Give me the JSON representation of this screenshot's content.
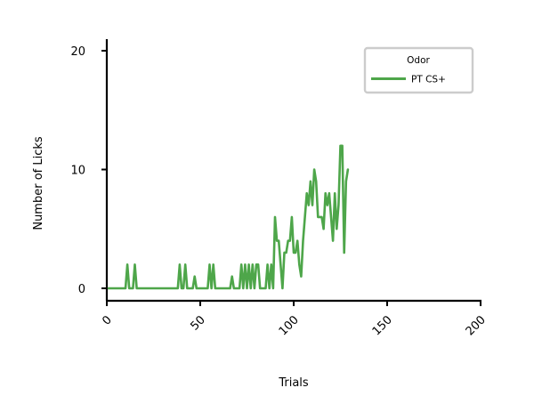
{
  "chart_data": {
    "type": "line",
    "xlabel": "Trials",
    "ylabel": "Number of Licks",
    "xlim": [
      0,
      200
    ],
    "ylim": [
      -1,
      21
    ],
    "xticks": [
      "0",
      "50",
      "100",
      "150",
      "200"
    ],
    "yticks": [
      "0",
      "10",
      "20"
    ],
    "xtick_values": [
      0,
      50,
      100,
      150,
      200
    ],
    "ytick_values": [
      0,
      10,
      20
    ],
    "grid": false,
    "legend": {
      "title": "Odor",
      "placement": "top-right"
    },
    "series": [
      {
        "name": "PT CS+",
        "color": "#4ea64a",
        "x": [
          1,
          2,
          3,
          4,
          5,
          6,
          7,
          8,
          9,
          10,
          11,
          12,
          13,
          14,
          15,
          16,
          17,
          18,
          19,
          20,
          21,
          22,
          23,
          24,
          25,
          26,
          27,
          28,
          29,
          30,
          31,
          32,
          33,
          34,
          35,
          36,
          37,
          38,
          39,
          40,
          41,
          42,
          43,
          44,
          45,
          46,
          47,
          48,
          49,
          50,
          51,
          52,
          53,
          54,
          55,
          56,
          57,
          58,
          59,
          60,
          61,
          62,
          63,
          64,
          65,
          66,
          67,
          68,
          69,
          70,
          71,
          72,
          73,
          74,
          75,
          76,
          77,
          78,
          79,
          80,
          81,
          82,
          83,
          84,
          85,
          86,
          87,
          88,
          89,
          90,
          91,
          92,
          93,
          94,
          95,
          96,
          97,
          98,
          99,
          100,
          101,
          102,
          103,
          104,
          105,
          106,
          107,
          108,
          109,
          110,
          111,
          112,
          113,
          114,
          115,
          116,
          117,
          118,
          119,
          120,
          121,
          122,
          123,
          124,
          125,
          126,
          127,
          128,
          129
        ],
        "values": [
          0,
          0,
          0,
          0,
          0,
          0,
          0,
          0,
          0,
          0,
          2,
          0,
          0,
          0,
          2,
          0,
          0,
          0,
          0,
          0,
          0,
          0,
          0,
          0,
          0,
          0,
          0,
          0,
          0,
          0,
          0,
          0,
          0,
          0,
          0,
          0,
          0,
          0,
          2,
          0,
          0,
          2,
          0,
          0,
          0,
          0,
          1,
          0,
          0,
          0,
          0,
          0,
          0,
          0,
          2,
          0,
          2,
          0,
          0,
          0,
          0,
          0,
          0,
          0,
          0,
          0,
          1,
          0,
          0,
          0,
          0,
          2,
          0,
          2,
          0,
          2,
          0,
          2,
          0,
          2,
          2,
          0,
          0,
          0,
          0,
          2,
          0,
          2,
          0,
          6,
          4,
          4,
          2,
          0,
          3,
          3,
          4,
          4,
          6,
          3,
          3,
          4,
          2,
          1,
          4,
          6,
          8,
          7,
          9,
          7,
          10,
          9,
          6,
          6,
          6,
          5,
          8,
          7,
          8,
          6,
          4,
          8,
          5,
          7,
          12,
          12,
          3,
          9,
          10
        ]
      }
    ]
  }
}
